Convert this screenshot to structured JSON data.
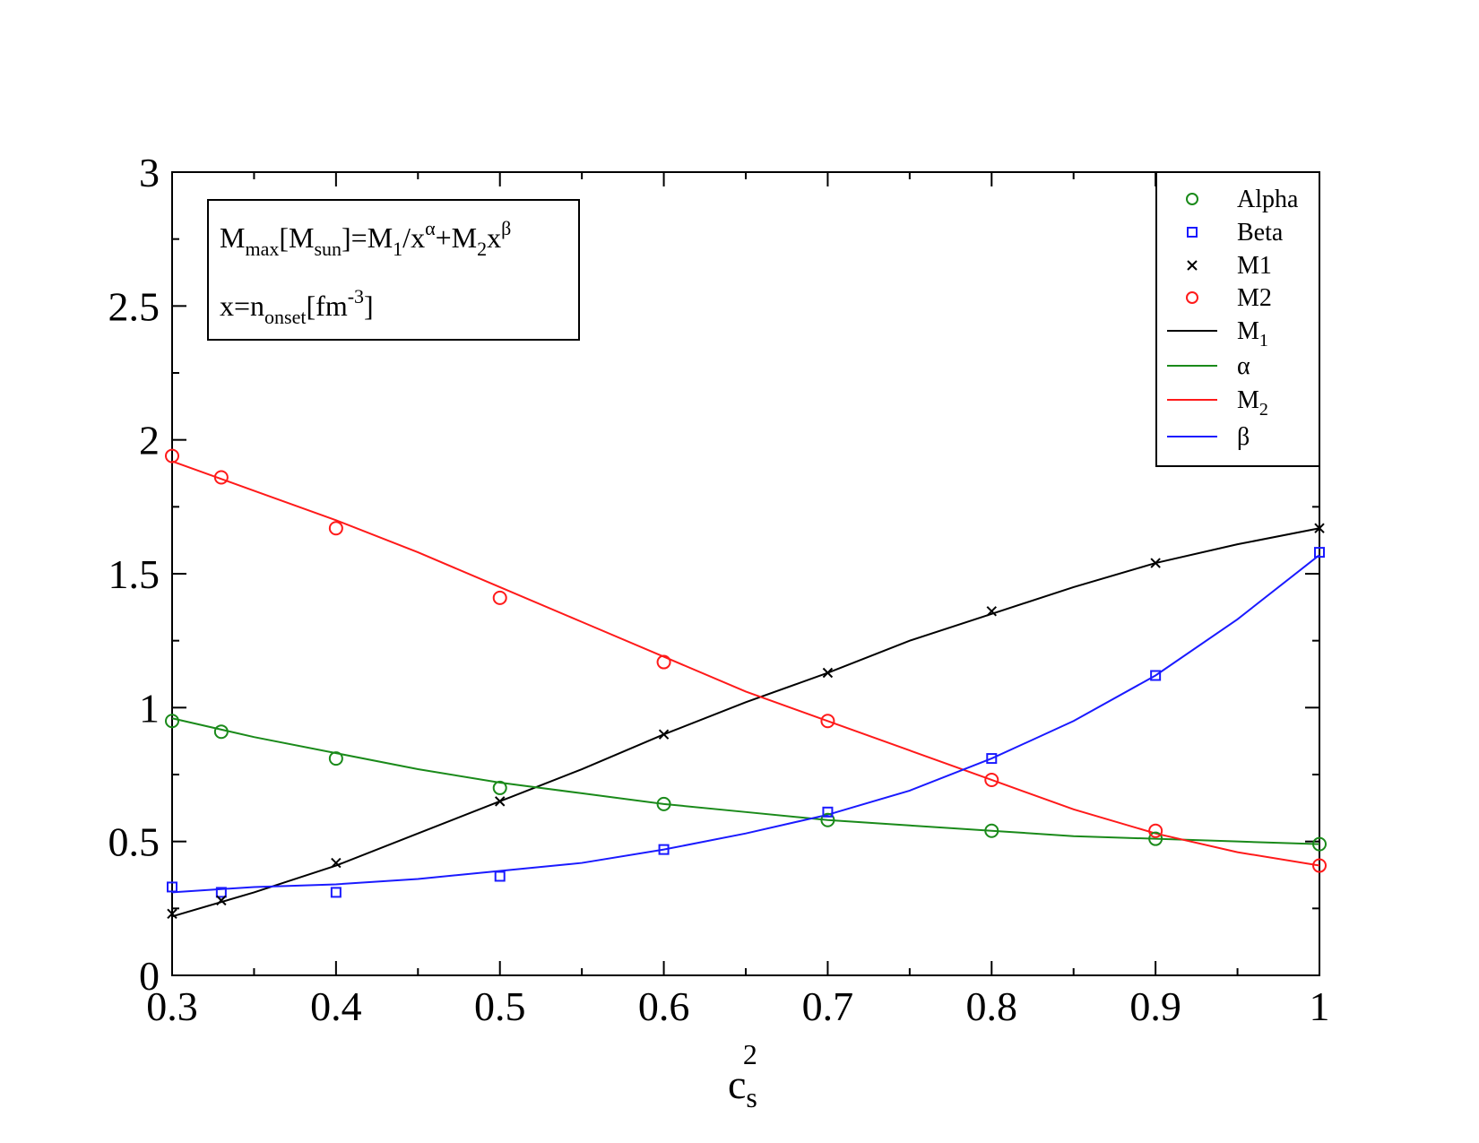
{
  "chart_data": {
    "type": "scatter",
    "title": "",
    "xlabel": {
      "base": "c",
      "sub": "s",
      "sup": "2"
    },
    "ylabel": "",
    "xlim": [
      0.3,
      1.0
    ],
    "ylim": [
      0,
      3
    ],
    "x_ticks": [
      0.3,
      0.4,
      0.5,
      0.6,
      0.7,
      0.8,
      0.9,
      1.0
    ],
    "x_tick_labels": [
      "0.3",
      "0.4",
      "0.5",
      "0.6",
      "0.7",
      "0.8",
      "0.9",
      "1"
    ],
    "y_ticks": [
      0,
      0.5,
      1,
      1.5,
      2,
      2.5,
      3
    ],
    "y_tick_labels": [
      "0",
      "0.5",
      "1",
      "1.5",
      "2",
      "2.5",
      "3"
    ],
    "grid": false,
    "legend_position": "top-right",
    "annotation": {
      "line1": {
        "a": "M",
        "a_sub": "max",
        "b": "[M",
        "b_sub": "sun",
        "c": "]=M",
        "c_sub": "1",
        "d": "/x",
        "d_sup": "α",
        "e": "+M",
        "e_sub": "2",
        "f": "x",
        "f_sup": "β"
      },
      "line2": {
        "a": "x=n",
        "a_sub": "onset",
        "b": "[fm",
        "b_sup": "-3",
        "c": "]"
      }
    },
    "series": [
      {
        "name": "Alpha",
        "kind": "points",
        "marker": "circle",
        "color": "#1a8a1a",
        "x": [
          0.3,
          0.33,
          0.4,
          0.5,
          0.6,
          0.7,
          0.8,
          0.9,
          1.0
        ],
        "y": [
          0.95,
          0.91,
          0.81,
          0.7,
          0.64,
          0.58,
          0.54,
          0.51,
          0.49
        ]
      },
      {
        "name": "Beta",
        "kind": "points",
        "marker": "square",
        "color": "#1a1aff",
        "x": [
          0.3,
          0.33,
          0.4,
          0.5,
          0.6,
          0.7,
          0.8,
          0.9,
          1.0
        ],
        "y": [
          0.33,
          0.31,
          0.31,
          0.37,
          0.47,
          0.61,
          0.81,
          1.12,
          1.58
        ]
      },
      {
        "name": "M1",
        "kind": "points",
        "marker": "x",
        "color": "#000000",
        "x": [
          0.3,
          0.33,
          0.4,
          0.5,
          0.6,
          0.7,
          0.8,
          0.9,
          1.0
        ],
        "y": [
          0.23,
          0.28,
          0.42,
          0.65,
          0.9,
          1.13,
          1.36,
          1.54,
          1.67
        ]
      },
      {
        "name": "M2",
        "kind": "points",
        "marker": "circle",
        "color": "#ff1a1a",
        "x": [
          0.3,
          0.33,
          0.4,
          0.5,
          0.6,
          0.7,
          0.8,
          0.9,
          1.0
        ],
        "y": [
          1.94,
          1.86,
          1.67,
          1.41,
          1.17,
          0.95,
          0.73,
          0.54,
          0.41
        ]
      },
      {
        "name": "M",
        "sub": "1",
        "kind": "line",
        "color": "#000000",
        "x": [
          0.3,
          0.35,
          0.4,
          0.45,
          0.5,
          0.55,
          0.6,
          0.65,
          0.7,
          0.75,
          0.8,
          0.85,
          0.9,
          0.95,
          1.0
        ],
        "y": [
          0.22,
          0.31,
          0.41,
          0.53,
          0.65,
          0.77,
          0.9,
          1.02,
          1.13,
          1.25,
          1.35,
          1.45,
          1.54,
          1.61,
          1.67
        ]
      },
      {
        "name": "α",
        "kind": "line",
        "color": "#1a8a1a",
        "x": [
          0.3,
          0.35,
          0.4,
          0.45,
          0.5,
          0.55,
          0.6,
          0.65,
          0.7,
          0.75,
          0.8,
          0.85,
          0.9,
          0.95,
          1.0
        ],
        "y": [
          0.96,
          0.89,
          0.83,
          0.77,
          0.72,
          0.68,
          0.64,
          0.61,
          0.58,
          0.56,
          0.54,
          0.52,
          0.51,
          0.5,
          0.49
        ]
      },
      {
        "name": "M",
        "sub": "2",
        "kind": "line",
        "color": "#ff1a1a",
        "x": [
          0.3,
          0.35,
          0.4,
          0.45,
          0.5,
          0.55,
          0.6,
          0.65,
          0.7,
          0.75,
          0.8,
          0.85,
          0.9,
          0.95,
          1.0
        ],
        "y": [
          1.92,
          1.81,
          1.7,
          1.58,
          1.45,
          1.32,
          1.19,
          1.06,
          0.95,
          0.84,
          0.73,
          0.62,
          0.53,
          0.46,
          0.41
        ]
      },
      {
        "name": "β",
        "kind": "line",
        "color": "#1a1aff",
        "x": [
          0.3,
          0.35,
          0.4,
          0.45,
          0.5,
          0.55,
          0.6,
          0.65,
          0.7,
          0.75,
          0.8,
          0.85,
          0.9,
          0.95,
          1.0
        ],
        "y": [
          0.31,
          0.33,
          0.34,
          0.36,
          0.39,
          0.42,
          0.47,
          0.53,
          0.6,
          0.69,
          0.81,
          0.95,
          1.12,
          1.33,
          1.57
        ]
      }
    ]
  }
}
